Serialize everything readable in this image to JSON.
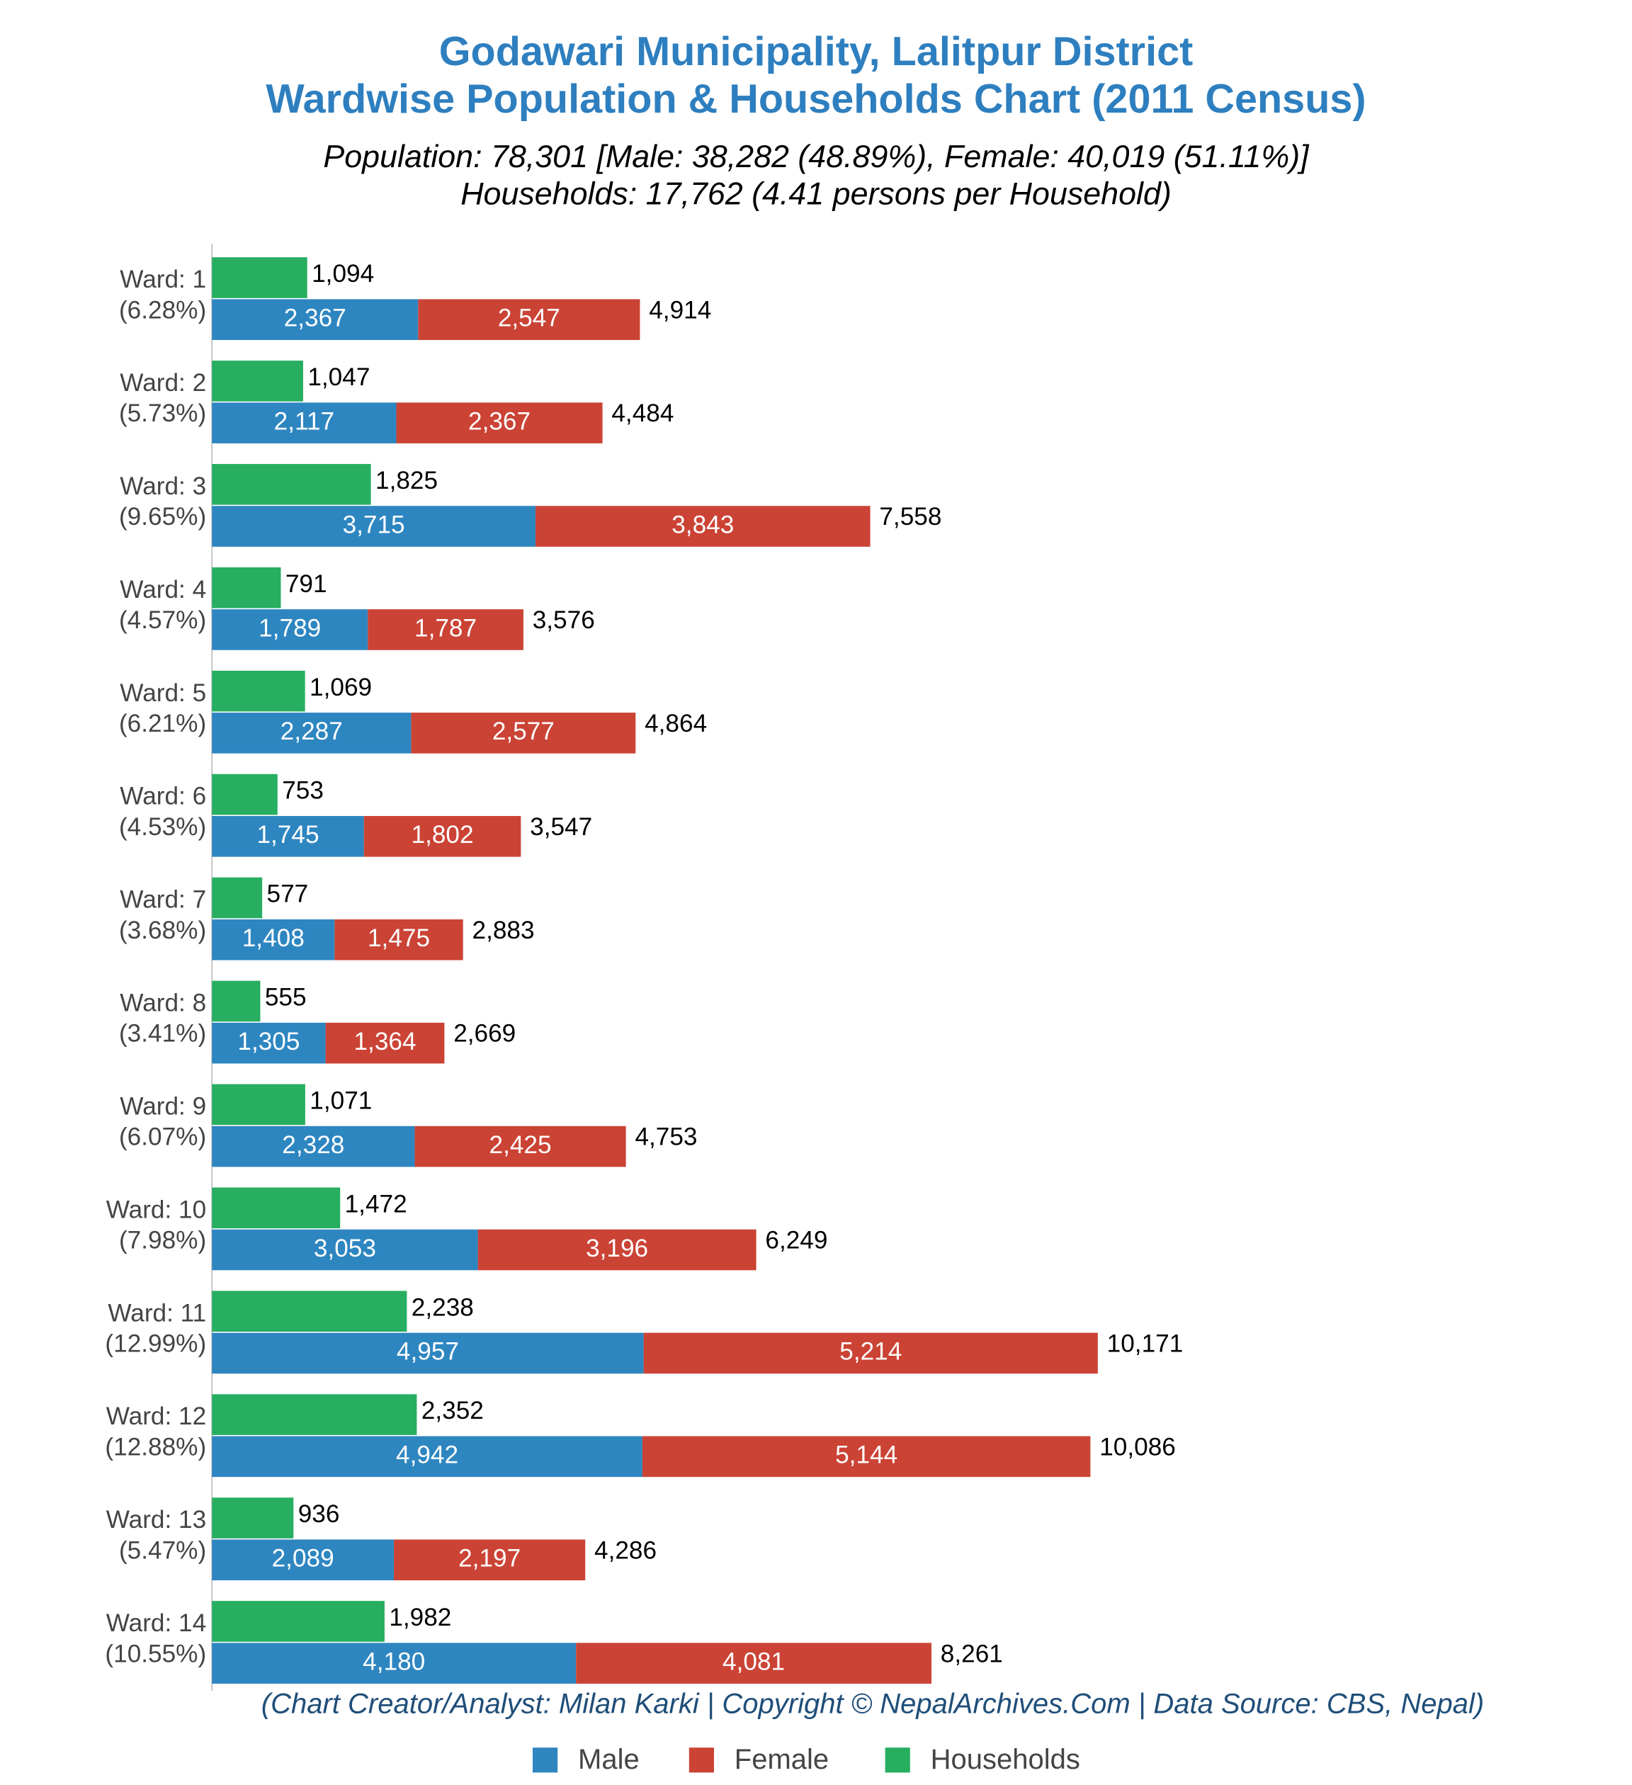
{
  "chart_data": {
    "type": "bar",
    "orientation": "horizontal",
    "title": [
      "Godawari Municipality, Lalitpur District",
      "Wardwise Population & Households Chart (2011 Census)"
    ],
    "subtitle": [
      "Population: 78,301 [Male: 38,282 (48.89%), Female: 40,019 (51.11%)]",
      "Households: 17,762 (4.41 persons per Household)"
    ],
    "caption": "(Chart Creator/Analyst: Milan Karki | Copyright © NepalArchives.Com | Data Source: CBS, Nepal)",
    "categories": [
      "Ward: 1",
      "Ward: 2",
      "Ward: 3",
      "Ward: 4",
      "Ward: 5",
      "Ward: 6",
      "Ward: 7",
      "Ward: 8",
      "Ward: 9",
      "Ward: 10",
      "Ward: 11",
      "Ward: 12",
      "Ward: 13",
      "Ward: 14"
    ],
    "category_shares": [
      "(6.28%)",
      "(5.73%)",
      "(9.65%)",
      "(4.57%)",
      "(6.21%)",
      "(4.53%)",
      "(3.68%)",
      "(3.41%)",
      "(6.07%)",
      "(7.98%)",
      "(12.99%)",
      "(12.88%)",
      "(5.47%)",
      "(10.55%)"
    ],
    "xlim": [
      0,
      10800
    ],
    "series": [
      {
        "name": "Male",
        "color": "#2e86c1",
        "stack": "population",
        "values": [
          2367,
          2117,
          3715,
          1789,
          2287,
          1745,
          1408,
          1305,
          2328,
          3053,
          4957,
          4942,
          2089,
          4180
        ],
        "value_labels": [
          "2,367",
          "2,117",
          "3,715",
          "1,789",
          "2,287",
          "1,745",
          "1,408",
          "1,305",
          "2,328",
          "3,053",
          "4,957",
          "4,942",
          "2,089",
          "4,180"
        ]
      },
      {
        "name": "Female",
        "color": "#cb4335",
        "stack": "population",
        "values": [
          2547,
          2367,
          3843,
          1787,
          2577,
          1802,
          1475,
          1364,
          2425,
          3196,
          5214,
          5144,
          2197,
          4081
        ],
        "value_labels": [
          "2,547",
          "2,367",
          "3,843",
          "1,787",
          "2,577",
          "1,802",
          "1,475",
          "1,364",
          "2,425",
          "3,196",
          "5,214",
          "5,144",
          "2,197",
          "4,081"
        ]
      },
      {
        "name": "Households",
        "color": "#27ae60",
        "stack": "households",
        "values": [
          1094,
          1047,
          1825,
          791,
          1069,
          753,
          577,
          555,
          1071,
          1472,
          2238,
          2352,
          936,
          1982
        ],
        "value_labels": [
          "1,094",
          "1,047",
          "1,825",
          "791",
          "1,069",
          "753",
          "577",
          "555",
          "1,071",
          "1,472",
          "2,238",
          "2,352",
          "936",
          "1,982"
        ]
      }
    ],
    "totals": [
      4914,
      4484,
      7558,
      3576,
      4864,
      3547,
      2883,
      2669,
      4753,
      6249,
      10171,
      10086,
      4286,
      8261
    ],
    "total_labels": [
      "4,914",
      "4,484",
      "7,558",
      "3,576",
      "4,864",
      "3,547",
      "2,883",
      "2,669",
      "4,753",
      "6,249",
      "10,171",
      "10,086",
      "4,286",
      "8,261"
    ],
    "legend": "bottom",
    "grid": false
  }
}
